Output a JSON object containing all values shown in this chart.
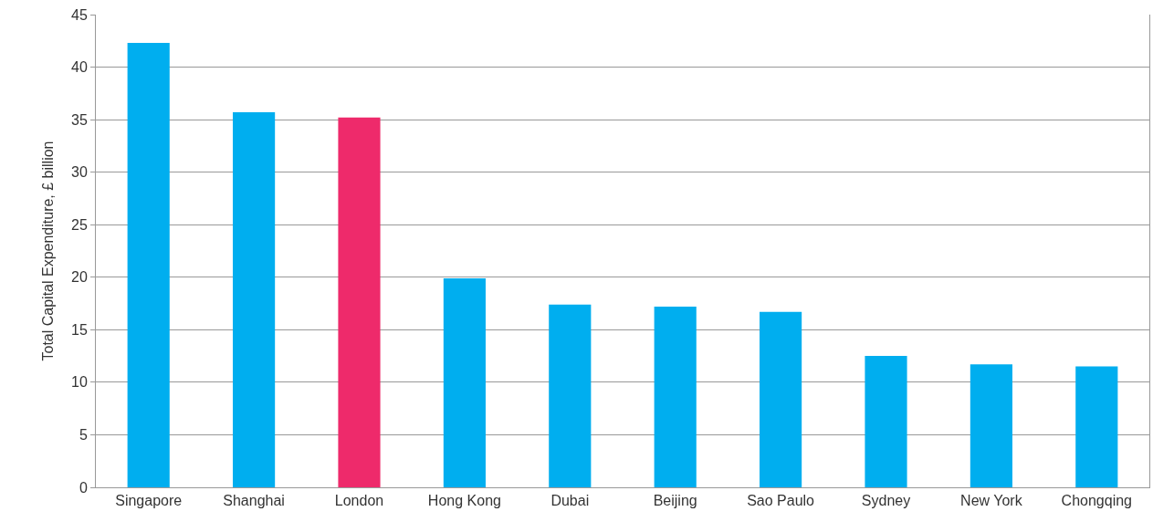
{
  "chart_data": {
    "type": "bar",
    "ylabel": "Total Capital Expenditure, £ billion",
    "categories": [
      "Singapore",
      "Shanghai",
      "London",
      "Hong Kong",
      "Dubai",
      "Beijing",
      "Sao Paulo",
      "Sydney",
      "New York",
      "Chongqing"
    ],
    "values": [
      42.3,
      35.7,
      35.2,
      19.9,
      17.4,
      17.2,
      16.7,
      12.5,
      11.7,
      11.5
    ],
    "colors": [
      "#00aeef",
      "#00aeef",
      "#ee2a6b",
      "#00aeef",
      "#00aeef",
      "#00aeef",
      "#00aeef",
      "#00aeef",
      "#00aeef",
      "#00aeef"
    ],
    "ylim": [
      0,
      45
    ],
    "yticks": [
      0,
      5,
      10,
      15,
      20,
      25,
      30,
      35,
      40,
      45
    ],
    "grid": "y"
  }
}
